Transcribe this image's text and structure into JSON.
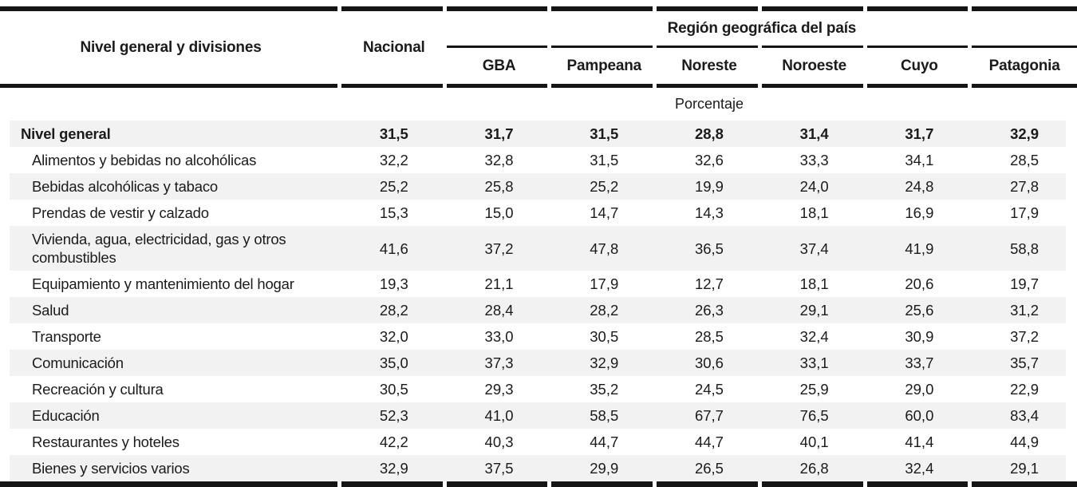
{
  "colors": {
    "text": "#1b1b1b",
    "rule": "#151515",
    "row_shading": "#f2f2f2",
    "background": "#ffffff"
  },
  "chart_data": {
    "type": "table",
    "stub_header": "Nivel general y divisiones",
    "national_column_header": "Nacional",
    "region_group_header": "Región geográfica del país",
    "region_columns": [
      "GBA",
      "Pampeana",
      "Noreste",
      "Noroeste",
      "Cuyo",
      "Patagonia"
    ],
    "unit_label": "Porcentaje",
    "value_columns_order": [
      "Nacional",
      "GBA",
      "Pampeana",
      "Noreste",
      "Noroeste",
      "Cuyo",
      "Patagonia"
    ],
    "rows": [
      {
        "label": "Nivel general",
        "bold": true,
        "values": [
          "31,5",
          "31,7",
          "31,5",
          "28,8",
          "31,4",
          "31,7",
          "32,9"
        ]
      },
      {
        "label": "Alimentos y bebidas no alcohólicas",
        "bold": false,
        "values": [
          "32,2",
          "32,8",
          "31,5",
          "32,6",
          "33,3",
          "34,1",
          "28,5"
        ]
      },
      {
        "label": "Bebidas alcohólicas y tabaco",
        "bold": false,
        "values": [
          "25,2",
          "25,8",
          "25,2",
          "19,9",
          "24,0",
          "24,8",
          "27,8"
        ]
      },
      {
        "label": "Prendas de vestir y calzado",
        "bold": false,
        "values": [
          "15,3",
          "15,0",
          "14,7",
          "14,3",
          "18,1",
          "16,9",
          "17,9"
        ]
      },
      {
        "label": "Vivienda, agua, electricidad, gas y otros combustibles",
        "bold": false,
        "values": [
          "41,6",
          "37,2",
          "47,8",
          "36,5",
          "37,4",
          "41,9",
          "58,8"
        ]
      },
      {
        "label": "Equipamiento y mantenimiento del hogar",
        "bold": false,
        "values": [
          "19,3",
          "21,1",
          "17,9",
          "12,7",
          "18,1",
          "20,6",
          "19,7"
        ]
      },
      {
        "label": "Salud",
        "bold": false,
        "values": [
          "28,2",
          "28,4",
          "28,2",
          "26,3",
          "29,1",
          "25,6",
          "31,2"
        ]
      },
      {
        "label": "Transporte",
        "bold": false,
        "values": [
          "32,0",
          "33,0",
          "30,5",
          "28,5",
          "32,4",
          "30,9",
          "37,2"
        ]
      },
      {
        "label": "Comunicación",
        "bold": false,
        "values": [
          "35,0",
          "37,3",
          "32,9",
          "30,6",
          "33,1",
          "33,7",
          "35,7"
        ]
      },
      {
        "label": "Recreación y cultura",
        "bold": false,
        "values": [
          "30,5",
          "29,3",
          "35,2",
          "24,5",
          "25,9",
          "29,0",
          "22,9"
        ]
      },
      {
        "label": "Educación",
        "bold": false,
        "values": [
          "52,3",
          "41,0",
          "58,5",
          "67,7",
          "76,5",
          "60,0",
          "83,4"
        ]
      },
      {
        "label": "Restaurantes y hoteles",
        "bold": false,
        "values": [
          "42,2",
          "40,3",
          "44,7",
          "44,7",
          "40,1",
          "41,4",
          "44,9"
        ]
      },
      {
        "label": "Bienes y servicios varios",
        "bold": false,
        "values": [
          "32,9",
          "37,5",
          "29,9",
          "26,5",
          "26,8",
          "32,4",
          "29,1"
        ]
      }
    ]
  }
}
